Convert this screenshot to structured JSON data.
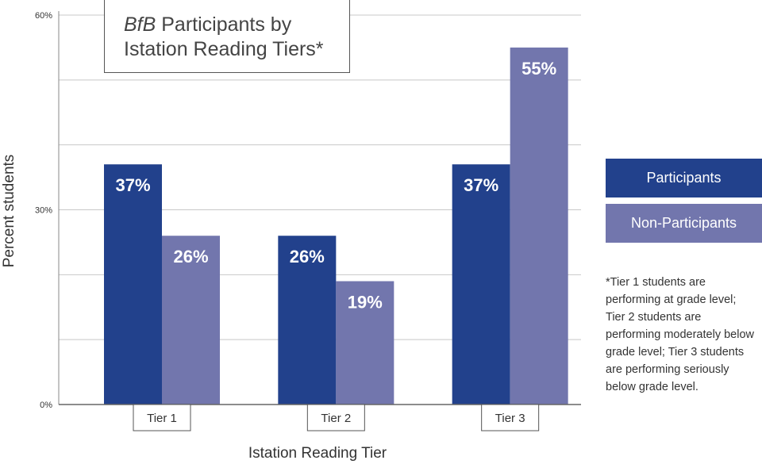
{
  "chart_data": {
    "type": "bar",
    "title_em": "BfB",
    "title_rest": " Participants by",
    "title_line2": "Istation Reading Tiers*",
    "xlabel": "Istation Reading Tier",
    "ylabel": "Percent students",
    "ylim": [
      0,
      60
    ],
    "yticks": [
      0,
      30,
      60
    ],
    "ytick_labels": [
      "0%",
      "30%",
      "60%"
    ],
    "grid": true,
    "categories": [
      "Tier 1",
      "Tier 2",
      "Tier 3"
    ],
    "series": [
      {
        "name": "Participants",
        "values": [
          37,
          26,
          37
        ],
        "labels": [
          "37%",
          "26%",
          "37%"
        ],
        "color": "#22418c"
      },
      {
        "name": "Non-Participants",
        "values": [
          26,
          19,
          55
        ],
        "labels": [
          "26%",
          "19%",
          "55%"
        ],
        "color": "#7276ad"
      }
    ],
    "legend_position": "right",
    "footnote": "*Tier 1 students are performing at grade level; Tier 2 students are performing moderately below grade level; Tier 3 students are performing seriously below grade level."
  }
}
